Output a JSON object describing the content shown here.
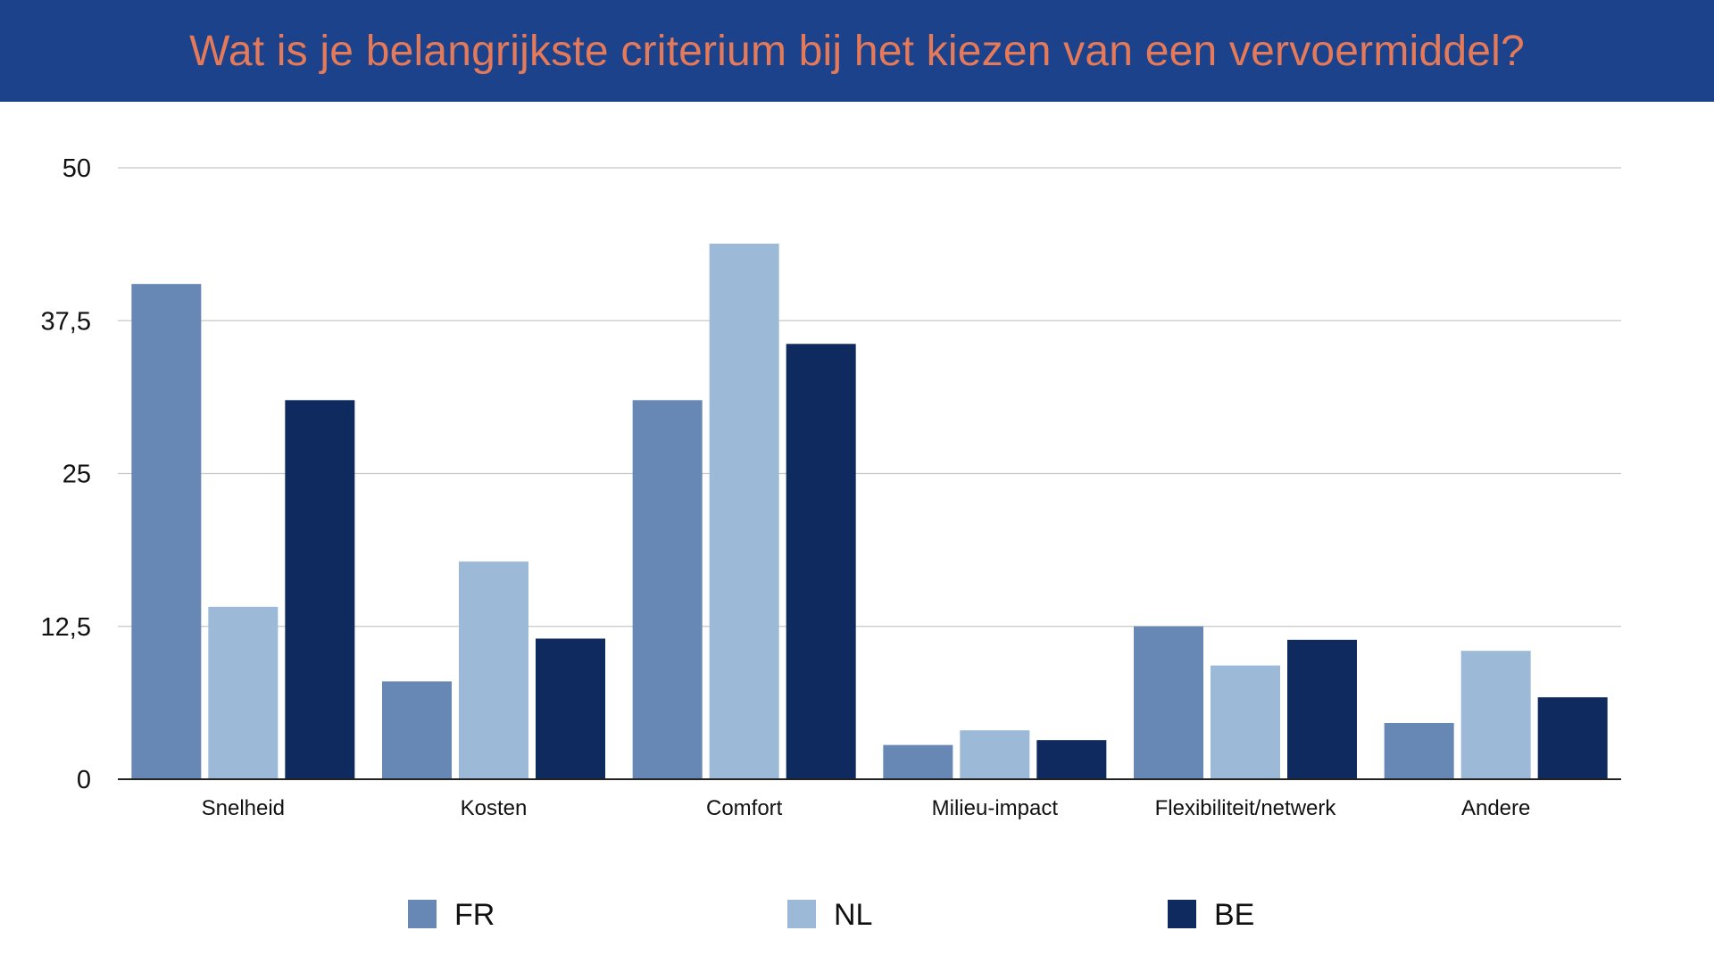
{
  "chart_data": {
    "type": "bar",
    "title": "Wat is je belangrijkste criterium bij het kiezen van een vervoermiddel?",
    "categories": [
      "Snelheid",
      "Kosten",
      "Comfort",
      "Milieu-impact",
      "Flexibiliteit/netwerk",
      "Andere"
    ],
    "series": [
      {
        "name": "FR",
        "color": "#6787b4",
        "values": [
          40.5,
          8.0,
          31.0,
          2.8,
          12.5,
          4.6
        ]
      },
      {
        "name": "NL",
        "color": "#9db9d8",
        "values": [
          14.1,
          17.8,
          43.8,
          4.0,
          9.3,
          10.5
        ]
      },
      {
        "name": "BE",
        "color": "#0e2a5e",
        "values": [
          31.0,
          11.5,
          35.6,
          3.2,
          11.4,
          6.7
        ]
      }
    ],
    "y_ticks": [
      "0",
      "12,5",
      "25",
      "37,5",
      "50"
    ],
    "y_tick_values": [
      0,
      12.5,
      25,
      37.5,
      50
    ],
    "ylim": [
      0,
      50
    ],
    "xlabel": "",
    "ylabel": "",
    "grid": true,
    "legend_position": "bottom",
    "colors": {
      "title_bar": "#1b428a",
      "title_text": "#e57a5a",
      "gridline": "#c8c8c8",
      "axis": "#222222"
    }
  }
}
